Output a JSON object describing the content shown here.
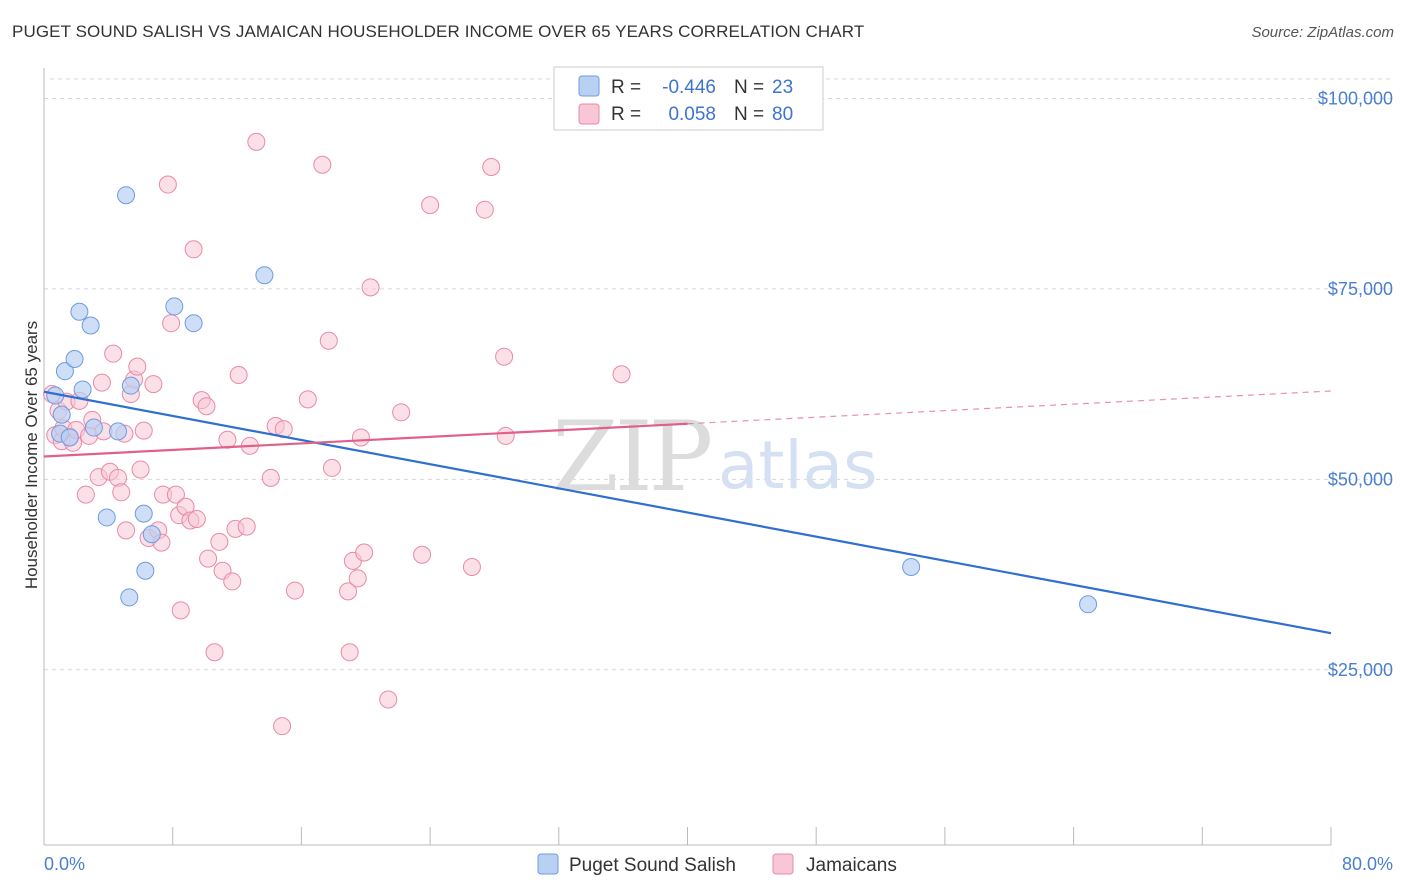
{
  "header": {
    "title": "PUGET SOUND SALISH VS JAMAICAN HOUSEHOLDER INCOME OVER 65 YEARS CORRELATION CHART",
    "source": "Source: ZipAtlas.com"
  },
  "watermark": {
    "zip": "ZIP",
    "atlas": "atlas"
  },
  "colors": {
    "blue_fill": "#b8d0f2",
    "blue_stroke": "#6f9be0",
    "blue_line": "#2f6fd0",
    "pink_fill": "#f8c6d6",
    "pink_stroke": "#e88aa8",
    "pink_line": "#e0608a",
    "tick_text": "#4a7fd0",
    "grid": "#d8d8d8"
  },
  "legend": {
    "rows": [
      {
        "r_label": "R =",
        "r_value": "-0.446",
        "n_label": "N =",
        "n_value": "23"
      },
      {
        "r_label": "R =",
        "r_value": "0.058",
        "n_label": "N =",
        "n_value": "80"
      }
    ]
  },
  "chart_data": {
    "type": "scatter",
    "title": "PUGET SOUND SALISH VS JAMAICAN HOUSEHOLDER INCOME OVER 65 YEARS CORRELATION CHART",
    "xlabel": "",
    "ylabel": "Householder Income Over 65 years",
    "xlim": [
      0,
      80
    ],
    "ylim": [
      2000,
      104000
    ],
    "x_tick_labels": [
      "0.0%",
      "80.0%"
    ],
    "y_ticks": [
      25000,
      50000,
      75000,
      100000
    ],
    "y_tick_labels": [
      "$25,000",
      "$50,000",
      "$75,000",
      "$100,000"
    ],
    "grid": true,
    "legend_position": "top-center",
    "series": [
      {
        "name": "Puget Sound Salish",
        "color": "blue",
        "points": [
          [
            0.7,
            61000
          ],
          [
            1.0,
            56000
          ],
          [
            1.1,
            58500
          ],
          [
            1.3,
            64200
          ],
          [
            1.6,
            55500
          ],
          [
            1.9,
            65800
          ],
          [
            2.2,
            72000
          ],
          [
            2.4,
            61800
          ],
          [
            2.9,
            70200
          ],
          [
            3.1,
            56800
          ],
          [
            3.9,
            45000
          ],
          [
            4.6,
            56300
          ],
          [
            5.1,
            87300
          ],
          [
            5.3,
            34500
          ],
          [
            5.4,
            62300
          ],
          [
            6.3,
            38000
          ],
          [
            6.2,
            45500
          ],
          [
            8.1,
            72700
          ],
          [
            9.3,
            70500
          ],
          [
            13.7,
            76800
          ],
          [
            6.7,
            42800
          ],
          [
            53.9,
            38500
          ],
          [
            64.9,
            33600
          ]
        ],
        "trend": {
          "x0": 0,
          "y0": 61500,
          "x1": 80,
          "y1": 29800
        }
      },
      {
        "name": "Jamaicans",
        "color": "pink",
        "points": [
          [
            0.5,
            61200
          ],
          [
            0.7,
            55800
          ],
          [
            0.9,
            59000
          ],
          [
            1.1,
            55000
          ],
          [
            1.2,
            56700
          ],
          [
            1.4,
            60200
          ],
          [
            1.6,
            55600
          ],
          [
            1.8,
            54800
          ],
          [
            2.0,
            56500
          ],
          [
            2.2,
            60300
          ],
          [
            2.6,
            48000
          ],
          [
            2.8,
            55700
          ],
          [
            3.0,
            57800
          ],
          [
            3.4,
            50300
          ],
          [
            3.6,
            62700
          ],
          [
            3.7,
            56300
          ],
          [
            4.1,
            51000
          ],
          [
            4.3,
            66500
          ],
          [
            4.6,
            50200
          ],
          [
            4.8,
            48300
          ],
          [
            5.0,
            56000
          ],
          [
            5.1,
            43300
          ],
          [
            5.4,
            61200
          ],
          [
            5.6,
            63100
          ],
          [
            5.8,
            64800
          ],
          [
            6.0,
            51300
          ],
          [
            6.2,
            56400
          ],
          [
            6.5,
            42300
          ],
          [
            6.8,
            62500
          ],
          [
            7.1,
            43300
          ],
          [
            7.4,
            48000
          ],
          [
            7.3,
            41700
          ],
          [
            7.7,
            88700
          ],
          [
            7.9,
            70500
          ],
          [
            8.2,
            48000
          ],
          [
            8.4,
            45300
          ],
          [
            8.5,
            32800
          ],
          [
            8.8,
            46400
          ],
          [
            9.1,
            44600
          ],
          [
            9.3,
            80200
          ],
          [
            9.5,
            44800
          ],
          [
            9.8,
            60400
          ],
          [
            10.1,
            59600
          ],
          [
            10.2,
            39600
          ],
          [
            10.6,
            27300
          ],
          [
            10.9,
            41800
          ],
          [
            11.1,
            38000
          ],
          [
            11.4,
            55200
          ],
          [
            11.7,
            36600
          ],
          [
            11.9,
            43500
          ],
          [
            12.1,
            63700
          ],
          [
            12.6,
            43800
          ],
          [
            12.8,
            54400
          ],
          [
            13.2,
            94300
          ],
          [
            14.1,
            50200
          ],
          [
            14.4,
            57000
          ],
          [
            14.8,
            17600
          ],
          [
            14.9,
            56600
          ],
          [
            15.6,
            35400
          ],
          [
            16.4,
            60500
          ],
          [
            17.3,
            91300
          ],
          [
            17.7,
            68200
          ],
          [
            17.9,
            51500
          ],
          [
            18.9,
            35300
          ],
          [
            19.0,
            27300
          ],
          [
            19.2,
            39300
          ],
          [
            19.5,
            37000
          ],
          [
            19.7,
            55500
          ],
          [
            19.9,
            40400
          ],
          [
            20.3,
            75200
          ],
          [
            21.4,
            21100
          ],
          [
            22.2,
            58800
          ],
          [
            23.5,
            40100
          ],
          [
            24.0,
            86000
          ],
          [
            26.6,
            38500
          ],
          [
            27.4,
            85400
          ],
          [
            27.8,
            91000
          ],
          [
            28.6,
            66100
          ],
          [
            35.9,
            63800
          ],
          [
            28.7,
            55700
          ]
        ],
        "trend": {
          "x0": 0,
          "y0": 53000,
          "x1": 40,
          "y1": 57300,
          "x1_dashed": 80,
          "y1_dashed": 61600
        }
      }
    ]
  }
}
